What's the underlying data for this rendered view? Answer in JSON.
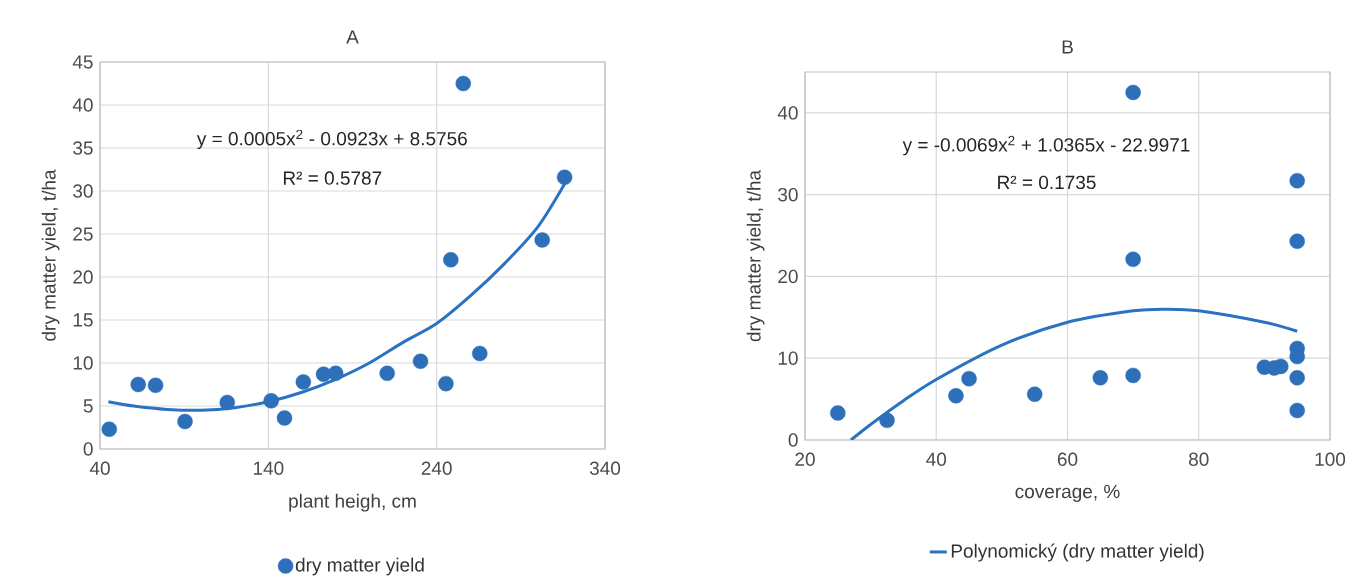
{
  "chart_data": [
    {
      "type": "scatter",
      "title": "A",
      "xlabel": "plant heigh, cm",
      "ylabel": "dry matter  yield, t/ha",
      "xlim": [
        40,
        340
      ],
      "xticks": [
        40,
        140,
        240,
        340
      ],
      "ylim": [
        0,
        45
      ],
      "yticks": [
        0,
        5,
        10,
        15,
        20,
        25,
        30,
        35,
        40,
        45
      ],
      "grid": true,
      "legend": "bottom",
      "annotations": [
        "y = 0.0005x$^{2}$ - 0.0923x + 8.5756",
        "R² = 0.5787"
      ],
      "series": [
        {
          "name": "dry matter yield",
          "color": "#2e6fba",
          "x": [
            45.5,
            62.7,
            73,
            90.5,
            115.6,
            141.7,
            149.6,
            160.8,
            172.8,
            180,
            210.6,
            230.4,
            245.5,
            248.4,
            255.8,
            265.6,
            302.7,
            316
          ],
          "values": [
            2.3,
            7.5,
            7.4,
            3.2,
            5.4,
            5.6,
            3.6,
            7.8,
            8.7,
            8.8,
            8.8,
            10.2,
            7.6,
            22.0,
            42.5,
            11.1,
            24.3,
            31.6
          ]
        },
        {
          "type": "line",
          "color": "#2a72c2",
          "x": [
            45,
            60,
            80,
            100,
            120,
            140,
            160,
            180,
            200,
            220,
            240,
            260,
            280,
            300,
            316
          ],
          "values": [
            5.5,
            5.0,
            4.6,
            4.5,
            4.8,
            5.5,
            6.6,
            8.1,
            10,
            12.4,
            14.6,
            17.8,
            21.5,
            25.8,
            30.8
          ]
        }
      ]
    },
    {
      "type": "scatter",
      "title": "B",
      "xlabel": "coverage, %",
      "ylabel": "dry matter  yield, t/ha",
      "xlim": [
        20,
        100
      ],
      "xticks": [
        20,
        40,
        60,
        80,
        100
      ],
      "ylim": [
        0,
        45
      ],
      "yticks": [
        0,
        10,
        20,
        30,
        40
      ],
      "grid": true,
      "legend": "bottom",
      "annotations": [
        "y = -0.0069x$^{2}$ + 1.0365x - 22.9971",
        "R² = 0.1735"
      ],
      "series": [
        {
          "color": "#2e6fba",
          "x": [
            25,
            32.5,
            43,
            45,
            55,
            65,
            70,
            70,
            70,
            90,
            91.5,
            92.5,
            95,
            95,
            95,
            95,
            95,
            95
          ],
          "values": [
            3.3,
            2.4,
            5.4,
            7.5,
            5.6,
            7.6,
            42.5,
            22.1,
            7.9,
            8.9,
            8.8,
            9.0,
            31.7,
            24.3,
            11.2,
            10.2,
            7.6,
            3.6
          ]
        },
        {
          "type": "line",
          "name": "Polynomický (dry matter yield)",
          "color": "#2a72c2",
          "x": [
            27,
            30,
            35,
            40,
            50,
            60,
            70,
            75,
            80,
            90,
            95
          ],
          "values": [
            0,
            1.9,
            4.8,
            7.4,
            11.6,
            14.4,
            15.8,
            16.0,
            15.8,
            14.4,
            13.3
          ]
        }
      ]
    }
  ]
}
